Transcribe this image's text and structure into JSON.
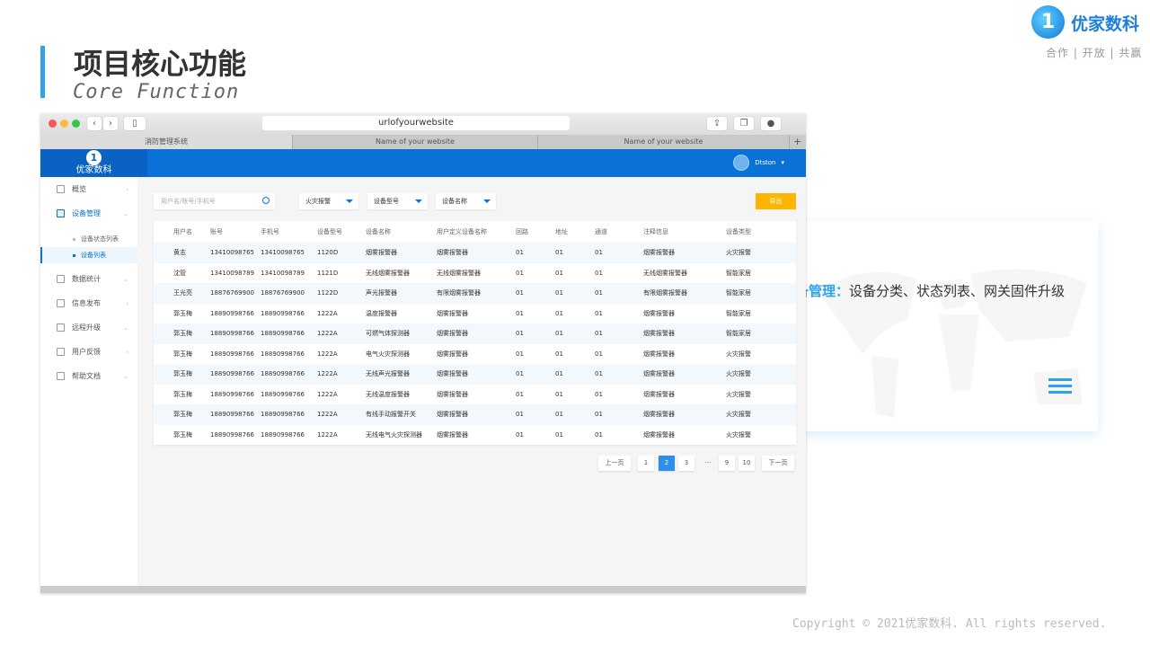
{
  "slide": {
    "title": "项目核心功能",
    "subtitle": "Core Function",
    "copyright": "Copyright © 2021优家数科. All rights reserved."
  },
  "brand": {
    "mark": "1",
    "name": "优家数科",
    "slogan": "合作 | 开放 | 共赢"
  },
  "card": {
    "highlight": "设备管理：",
    "text": "设备分类、状态列表、网关固件升级"
  },
  "browser": {
    "url": "urlofyourwebsite",
    "tabs": [
      "消防管理系统",
      "Name of your website",
      "Name of your website"
    ],
    "close": "×",
    "new_tab": "+"
  },
  "app": {
    "logo_mark": "1",
    "logo_name": "优家数科",
    "user": "Dtston",
    "user_caret": "▾",
    "sidebar": [
      {
        "label": "概览",
        "chevron": "›"
      },
      {
        "label": "设备管理",
        "chevron": "⌄",
        "open": true,
        "children": [
          "设备状态列表",
          "设备列表"
        ]
      },
      {
        "label": "数据统计",
        "chevron": "⌄"
      },
      {
        "label": "信息发布",
        "chevron": "›"
      },
      {
        "label": "远程升级",
        "chevron": "⌄"
      },
      {
        "label": "用户反馈",
        "chevron": "›"
      },
      {
        "label": "帮助文档",
        "chevron": "⌄"
      }
    ],
    "filters": {
      "search_placeholder": "用户名/账号/手机号",
      "select1": "火灾报警",
      "select2": "设备型号",
      "select3": "设备名称",
      "export": "导出"
    },
    "table": {
      "headers": [
        "用户名",
        "账号",
        "手机号",
        "设备型号",
        "设备名称",
        "用户定义设备名称",
        "回路",
        "地址",
        "通道",
        "注释信息",
        "设备类型"
      ],
      "rows": [
        [
          "黄志",
          "13410098765",
          "13410098765",
          "1120D",
          "烟雾报警器",
          "烟雾报警器",
          "01",
          "01",
          "01",
          "烟雾报警器",
          "火灾报警"
        ],
        [
          "沈管",
          "13410098789",
          "13410098789",
          "1121D",
          "无线烟雾报警器",
          "无线烟雾报警器",
          "01",
          "01",
          "01",
          "无线烟雾报警器",
          "智能家居"
        ],
        [
          "王光亮",
          "18876769900",
          "18876769900",
          "1122D",
          "声光报警器",
          "有限烟雾报警器",
          "01",
          "01",
          "01",
          "有限烟雾报警器",
          "智能家居"
        ],
        [
          "郭玉梅",
          "18890998766",
          "18890998766",
          "1222A",
          "温度报警器",
          "烟雾报警器",
          "01",
          "01",
          "01",
          "烟雾报警器",
          "智能家居"
        ],
        [
          "郭玉梅",
          "18890998766",
          "18890998766",
          "1222A",
          "可燃气体探测器",
          "烟雾报警器",
          "01",
          "01",
          "01",
          "烟雾报警器",
          "智能家居"
        ],
        [
          "郭玉梅",
          "18890998766",
          "18890998766",
          "1222A",
          "电气火灾探测器",
          "烟雾报警器",
          "01",
          "01",
          "01",
          "烟雾报警器",
          "火灾报警"
        ],
        [
          "郭玉梅",
          "18890998766",
          "18890998766",
          "1222A",
          "无线声光报警器",
          "烟雾报警器",
          "01",
          "01",
          "01",
          "烟雾报警器",
          "火灾报警"
        ],
        [
          "郭玉梅",
          "18890998766",
          "18890998766",
          "1222A",
          "无线温度报警器",
          "烟雾报警器",
          "01",
          "01",
          "01",
          "烟雾报警器",
          "火灾报警"
        ],
        [
          "郭玉梅",
          "18890998766",
          "18890998766",
          "1222A",
          "有线手动报警开关",
          "烟雾报警器",
          "01",
          "01",
          "01",
          "烟雾报警器",
          "火灾报警"
        ],
        [
          "郭玉梅",
          "18890998766",
          "18890998766",
          "1222A",
          "无线电气火灾探测器",
          "烟雾报警器",
          "01",
          "01",
          "01",
          "烟雾报警器",
          "火灾报警"
        ]
      ]
    },
    "pager": {
      "prev": "上一页",
      "pages": [
        "1",
        "2",
        "3",
        "···",
        "9",
        "10"
      ],
      "current": "2",
      "next": "下一页"
    }
  },
  "colors": {
    "accent": "#2ea1f0",
    "appbar": "#0a72d6",
    "export": "#fdb500"
  }
}
